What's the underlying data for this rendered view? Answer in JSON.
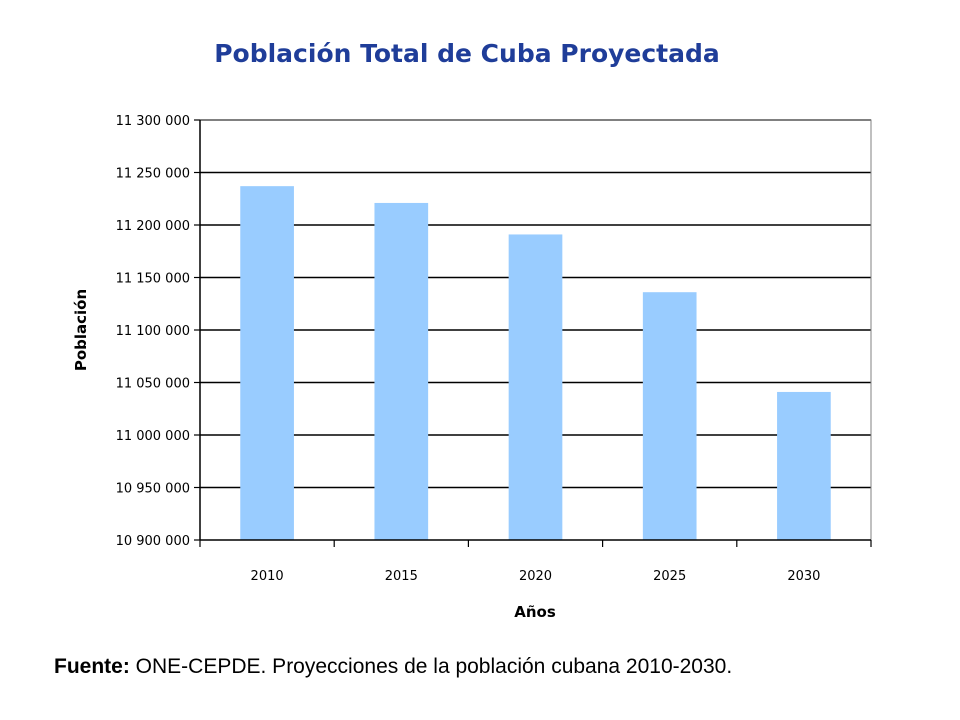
{
  "chart_data": {
    "type": "bar",
    "title": "Población Total de Cuba Proyectada",
    "xlabel": "Años",
    "ylabel": "Población",
    "categories": [
      "2010",
      "2015",
      "2020",
      "2025",
      "2030"
    ],
    "values": [
      11237000,
      11221000,
      11191000,
      11136000,
      11041000
    ],
    "ylim": [
      10900000,
      11300000
    ],
    "yticks": [
      {
        "value": 10900000,
        "label": "10 900 000"
      },
      {
        "value": 10950000,
        "label": "10 950 000"
      },
      {
        "value": 11000000,
        "label": "11 000 000"
      },
      {
        "value": 11050000,
        "label": "11 050 000"
      },
      {
        "value": 11100000,
        "label": "11 100 000"
      },
      {
        "value": 11150000,
        "label": "11 150 000"
      },
      {
        "value": 11200000,
        "label": "11 200 000"
      },
      {
        "value": 11250000,
        "label": "11 250 000"
      },
      {
        "value": 11300000,
        "label": "11 300 000"
      }
    ],
    "grid": true,
    "legend": "none",
    "colors": {
      "bar": "#99ccff",
      "title": "#1f3d99",
      "grid": "#000000",
      "frame": "#808080"
    }
  },
  "source": {
    "label": "Fuente:",
    "text": " ONE-CEPDE. Proyecciones de la población cubana 2010-2030."
  }
}
